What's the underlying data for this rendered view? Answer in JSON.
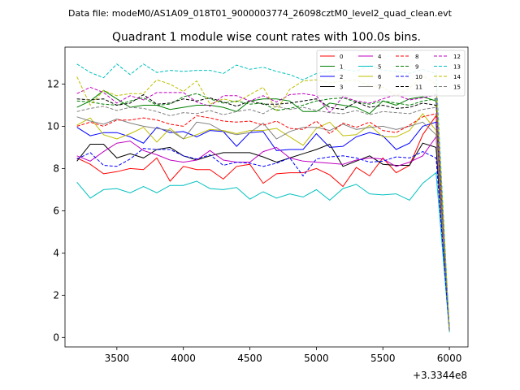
{
  "header": {
    "data_file": "Data file: modeM0/AS1A09_018T01_9000003774_26098cztM0_level2_quad_clean.evt"
  },
  "chart_data": {
    "type": "line",
    "title": "Quadrant 1 module wise count rates with 100.0s bins.",
    "xlabel": "",
    "ylabel": "",
    "x_offset_label": "+3.3344e8",
    "xlim": [
      3110,
      6140
    ],
    "ylim": [
      -0.45,
      13.75
    ],
    "xticks": [
      3500,
      4000,
      4500,
      5000,
      5500,
      6000
    ],
    "yticks": [
      0,
      2,
      4,
      6,
      8,
      10,
      12
    ],
    "grid": false,
    "legend_position": "top-right",
    "x": [
      3200,
      3300,
      3400,
      3500,
      3600,
      3700,
      3800,
      3900,
      4000,
      4100,
      4200,
      4300,
      4400,
      4500,
      4600,
      4700,
      4800,
      4900,
      5000,
      5100,
      5200,
      5300,
      5400,
      5500,
      5600,
      5700,
      5800,
      5900,
      6000
    ],
    "series": [
      {
        "name": "0",
        "color": "#ff0000",
        "dash": "solid",
        "values": [
          8.5,
          8.2,
          7.75,
          7.85,
          8.0,
          7.95,
          8.5,
          7.4,
          8.1,
          7.95,
          7.95,
          7.5,
          8.1,
          8.2,
          7.3,
          7.75,
          7.8,
          7.8,
          8.0,
          7.7,
          7.15,
          8.05,
          7.65,
          8.5,
          7.8,
          8.15,
          9.6,
          10.5,
          0.4
        ]
      },
      {
        "name": "1",
        "color": "#008000",
        "dash": "solid",
        "values": [
          10.9,
          11.2,
          11.7,
          11.3,
          10.9,
          11.0,
          11.0,
          10.8,
          10.9,
          11.0,
          11.0,
          10.9,
          10.7,
          11.2,
          11.3,
          11.3,
          11.2,
          10.7,
          10.7,
          11.1,
          11.0,
          10.9,
          10.6,
          11.2,
          11.0,
          11.3,
          11.4,
          11.2,
          0.35
        ]
      },
      {
        "name": "2",
        "color": "#0000ff",
        "dash": "solid",
        "values": [
          9.95,
          9.55,
          9.7,
          9.7,
          9.5,
          9.2,
          9.95,
          9.7,
          9.75,
          9.5,
          9.8,
          9.75,
          9.05,
          9.7,
          9.75,
          8.85,
          8.9,
          8.9,
          9.65,
          9.0,
          9.05,
          9.5,
          9.7,
          9.55,
          8.9,
          9.2,
          10.0,
          10.2,
          0.3
        ]
      },
      {
        "name": "3",
        "color": "#000000",
        "dash": "solid",
        "values": [
          8.35,
          9.15,
          9.15,
          8.5,
          8.7,
          8.5,
          8.9,
          9.0,
          8.6,
          8.4,
          8.6,
          8.75,
          8.75,
          8.75,
          8.55,
          8.3,
          8.5,
          8.7,
          8.9,
          9.15,
          8.1,
          8.35,
          8.6,
          8.2,
          8.15,
          8.15,
          9.2,
          9.0,
          0.35
        ]
      },
      {
        "name": "4",
        "color": "#bf00bf",
        "dash": "solid",
        "values": [
          8.6,
          8.35,
          8.8,
          9.2,
          9.3,
          8.85,
          8.65,
          8.4,
          8.3,
          8.4,
          8.85,
          8.4,
          8.3,
          8.3,
          8.8,
          9.0,
          8.5,
          8.35,
          8.3,
          8.25,
          8.2,
          8.4,
          8.5,
          8.45,
          8.1,
          8.3,
          8.6,
          9.5,
          0.35
        ]
      },
      {
        "name": "5",
        "color": "#00bfbf",
        "dash": "solid",
        "values": [
          7.35,
          6.6,
          7.0,
          7.05,
          6.85,
          7.15,
          6.85,
          7.2,
          7.2,
          7.4,
          7.05,
          7.0,
          7.1,
          6.55,
          6.9,
          6.6,
          6.8,
          6.65,
          7.0,
          6.5,
          7.05,
          7.25,
          6.8,
          6.75,
          6.8,
          6.5,
          7.3,
          7.8,
          0.25
        ]
      },
      {
        "name": "6",
        "color": "#bfbf00",
        "dash": "solid",
        "values": [
          10.05,
          10.4,
          9.6,
          9.4,
          9.65,
          9.95,
          9.25,
          9.9,
          9.4,
          9.6,
          9.85,
          9.8,
          9.65,
          9.8,
          9.8,
          9.9,
          9.5,
          9.1,
          9.9,
          10.2,
          9.55,
          9.6,
          10.05,
          9.5,
          9.5,
          9.8,
          10.6,
          9.8,
          0.3
        ]
      },
      {
        "name": "7",
        "color": "#808080",
        "dash": "solid",
        "values": [
          10.45,
          10.25,
          10.1,
          10.35,
          10.15,
          10.0,
          9.9,
          9.8,
          9.4,
          10.2,
          10.1,
          9.75,
          9.6,
          9.7,
          10.15,
          9.4,
          9.75,
          9.95,
          9.95,
          9.8,
          10.1,
          9.85,
          9.95,
          10.0,
          9.85,
          10.0,
          10.2,
          9.6,
          0.3
        ]
      },
      {
        "name": "8",
        "color": "#ff0000",
        "dash": "dashed",
        "values": [
          10.0,
          10.2,
          10.0,
          10.3,
          10.3,
          10.4,
          10.3,
          10.1,
          10.0,
          10.5,
          10.4,
          10.25,
          10.2,
          10.25,
          10.05,
          10.25,
          9.9,
          9.85,
          10.25,
          9.65,
          10.15,
          9.95,
          10.2,
          9.8,
          9.7,
          10.05,
          10.45,
          10.6,
          0.4
        ]
      },
      {
        "name": "9",
        "color": "#008000",
        "dash": "dashed",
        "values": [
          11.2,
          11.15,
          11.05,
          11.0,
          11.2,
          11.35,
          11.0,
          11.05,
          11.4,
          11.55,
          11.3,
          11.1,
          11.2,
          11.05,
          11.1,
          10.75,
          10.85,
          11.0,
          11.2,
          11.3,
          11.35,
          11.15,
          11.05,
          11.2,
          11.1,
          11.0,
          11.2,
          11.3,
          0.35
        ]
      },
      {
        "name": "10",
        "color": "#0000ff",
        "dash": "dashed",
        "values": [
          8.45,
          8.75,
          8.15,
          8.1,
          8.45,
          8.95,
          8.9,
          8.9,
          8.6,
          8.45,
          8.65,
          8.15,
          8.3,
          8.25,
          8.1,
          8.25,
          8.5,
          7.65,
          8.45,
          8.55,
          8.6,
          8.5,
          8.3,
          8.35,
          8.55,
          8.5,
          8.8,
          8.5,
          0.3
        ]
      },
      {
        "name": "11",
        "color": "#000000",
        "dash": "dashed",
        "values": [
          11.3,
          11.25,
          11.3,
          11.0,
          11.1,
          11.5,
          11.05,
          11.1,
          11.3,
          11.2,
          11.35,
          11.15,
          10.95,
          11.2,
          11.05,
          11.05,
          11.1,
          11.2,
          11.3,
          10.9,
          10.8,
          11.15,
          10.9,
          11.0,
          10.85,
          10.9,
          11.1,
          11.0,
          0.35
        ]
      },
      {
        "name": "12",
        "color": "#bf00bf",
        "dash": "dashed",
        "values": [
          11.55,
          11.85,
          11.6,
          11.1,
          11.45,
          11.25,
          11.6,
          11.6,
          11.6,
          11.15,
          10.95,
          11.45,
          11.45,
          11.2,
          11.45,
          11.15,
          11.5,
          11.55,
          11.45,
          10.65,
          11.4,
          11.2,
          11.1,
          11.3,
          11.5,
          11.25,
          11.35,
          11.5,
          0.35
        ]
      },
      {
        "name": "13",
        "color": "#00bfbf",
        "dash": "dashed",
        "values": [
          12.95,
          12.55,
          12.3,
          12.95,
          12.45,
          12.95,
          12.55,
          12.65,
          12.6,
          12.65,
          12.65,
          12.5,
          12.9,
          12.7,
          12.8,
          12.6,
          12.45,
          12.2,
          12.5,
          12.6,
          12.7,
          12.6,
          12.9,
          12.65,
          12.6,
          12.5,
          12.7,
          12.5,
          0.3
        ]
      },
      {
        "name": "14",
        "color": "#bfbf00",
        "dash": "dashed",
        "values": [
          12.35,
          11.0,
          11.7,
          11.45,
          11.55,
          11.55,
          12.2,
          12.0,
          11.65,
          12.15,
          11.05,
          11.3,
          11.15,
          11.5,
          11.85,
          10.75,
          11.75,
          12.15,
          12.2,
          12.05,
          12.15,
          12.2,
          11.9,
          11.85,
          11.45,
          11.8,
          12.4,
          12.0,
          0.35
        ]
      },
      {
        "name": "15",
        "color": "#808080",
        "dash": "dashed",
        "values": [
          10.7,
          10.85,
          10.95,
          10.75,
          10.9,
          10.85,
          10.7,
          10.5,
          10.65,
          10.6,
          10.75,
          10.55,
          10.7,
          10.8,
          10.6,
          10.95,
          10.8,
          10.9,
          10.75,
          10.65,
          10.6,
          10.75,
          10.55,
          10.7,
          10.65,
          10.6,
          10.8,
          10.9,
          0.3
        ]
      }
    ]
  }
}
